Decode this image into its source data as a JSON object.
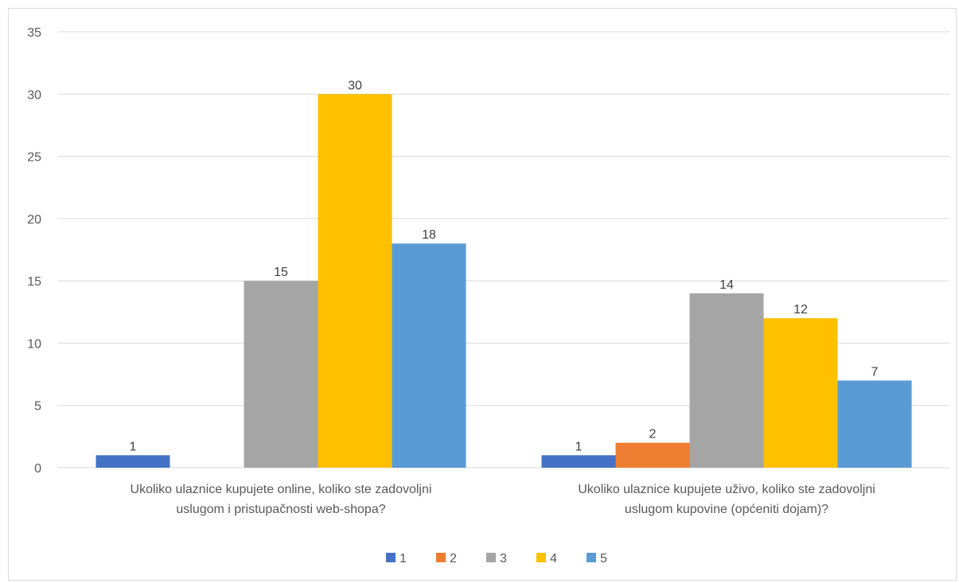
{
  "chart_data": {
    "type": "bar",
    "title": "",
    "xlabel": "",
    "ylabel": "",
    "ylim": [
      0,
      35
    ],
    "yticks": [
      0,
      5,
      10,
      15,
      20,
      25,
      30,
      35
    ],
    "grid": true,
    "legend_position": "bottom",
    "categories": [
      [
        "Ukoliko ulaznice kupujete online, koliko ste zadovoljni",
        "uslugom i pristupačnosti web-shopa?"
      ],
      [
        "Ukoliko ulaznice kupujete uživo, koliko ste zadovoljni",
        "uslugom kupovine (općeniti dojam)?"
      ]
    ],
    "series": [
      {
        "name": "1",
        "color": "#4472C4",
        "values": [
          1,
          1
        ]
      },
      {
        "name": "2",
        "color": "#ED7D31",
        "values": [
          0,
          2
        ]
      },
      {
        "name": "3",
        "color": "#A5A5A5",
        "values": [
          15,
          14
        ]
      },
      {
        "name": "4",
        "color": "#FFC000",
        "values": [
          30,
          12
        ]
      },
      {
        "name": "5",
        "color": "#5B9BD5",
        "values": [
          18,
          7
        ]
      }
    ]
  }
}
